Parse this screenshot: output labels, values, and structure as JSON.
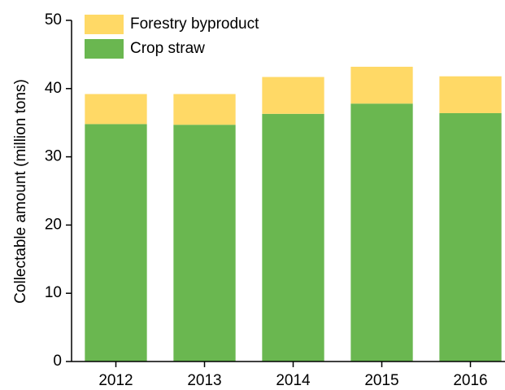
{
  "chart_data": {
    "type": "stacked_bar",
    "y_label": "Collectable amount (million tons)",
    "categories": [
      "2012",
      "2013",
      "2014",
      "2015",
      "2016"
    ],
    "series": [
      {
        "name": "Crop straw",
        "color": "#6ab750",
        "values": [
          34.8,
          34.7,
          36.3,
          37.8,
          36.4
        ]
      },
      {
        "name": "Forestry byproduct",
        "color": "#ffd966",
        "values": [
          4.4,
          4.5,
          5.4,
          5.4,
          5.4
        ]
      }
    ],
    "ylim": [
      0,
      50
    ],
    "yticks": [
      0,
      10,
      20,
      30,
      40,
      50
    ],
    "legend": "upper left"
  }
}
